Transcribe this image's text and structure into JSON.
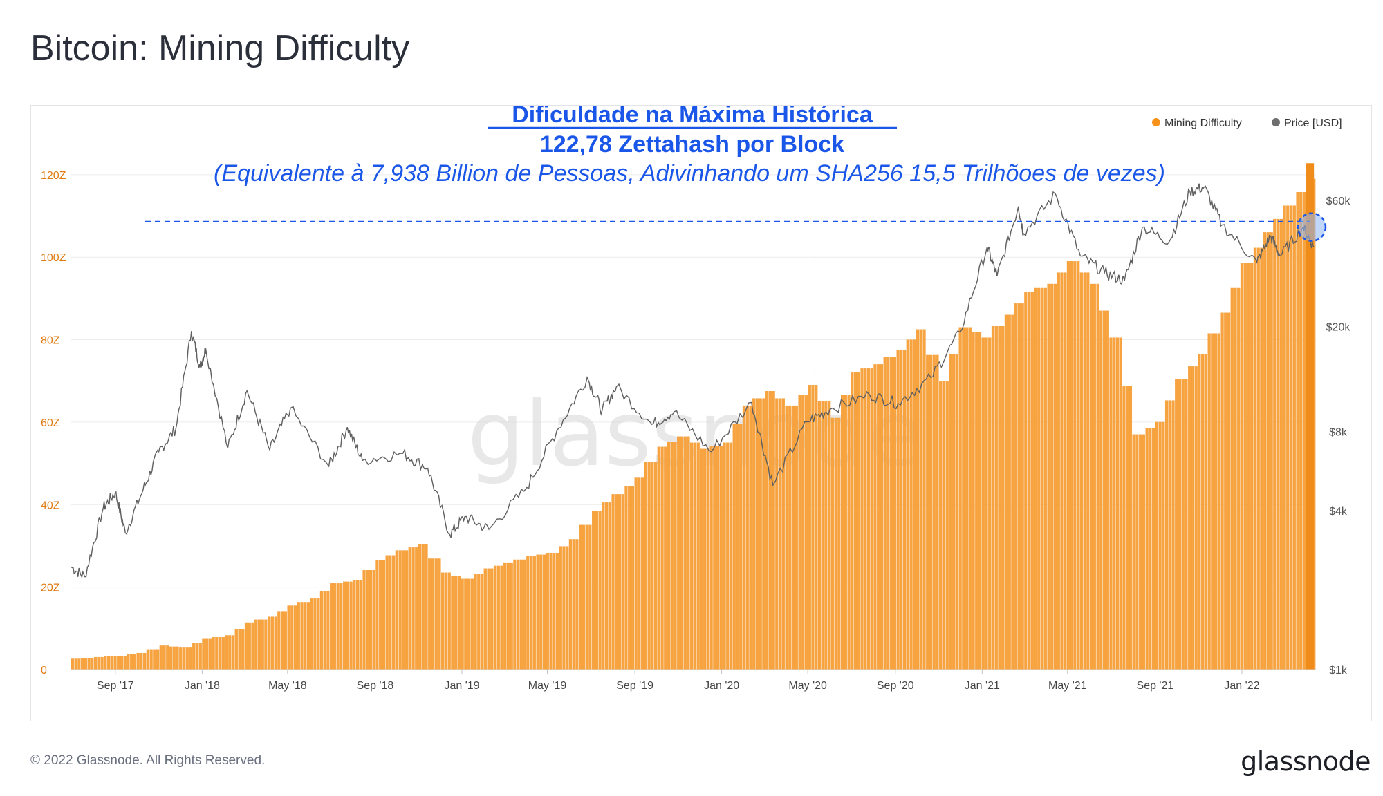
{
  "title": "Bitcoin: Mining Difficulty",
  "footer": {
    "copyright": "© 2022 Glassnode. All Rights Reserved.",
    "logo": "glassnode"
  },
  "watermark": "glassnode",
  "annotation": {
    "line1": "Dificuldade na Máxima Histórica",
    "line2": "122,78 Zettahash por Block",
    "line3": "(Equivalente à 7,938 Billion de Pessoas, Adivinhando um SHA256 15,5 Trilhõoes de vezes)",
    "color": "#1a56e8"
  },
  "chart_data": {
    "type": "bar",
    "legend": [
      {
        "name": "Mining Difficulty",
        "color": "#f7931a"
      },
      {
        "name": "Price [USD]",
        "color": "#6e6e6e"
      }
    ],
    "legend_position": "top-right",
    "y_left": {
      "label": "",
      "range": [
        0,
        125
      ],
      "ticks": [
        "0",
        "20Z",
        "40Z",
        "60Z",
        "80Z",
        "100Z",
        "120Z"
      ],
      "tick_values": [
        0,
        20,
        40,
        60,
        80,
        100,
        120
      ],
      "color": "#e07b12"
    },
    "y_right": {
      "label": "",
      "scale": "log",
      "range": [
        1000,
        90000
      ],
      "ticks": [
        "$1k",
        "$4k",
        "$8k",
        "$20k",
        "$60k"
      ],
      "tick_values": [
        1000,
        4000,
        8000,
        20000,
        60000
      ],
      "color": "#555555"
    },
    "x_axis": {
      "start": "2017-07-01",
      "end": "2022-04-15",
      "ticks": [
        "Sep '17",
        "Jan '18",
        "May '18",
        "Sep '18",
        "Jan '19",
        "May '19",
        "Sep '19",
        "Jan '20",
        "May '20",
        "Sep '20",
        "Jan '21",
        "May '21",
        "Sep '21",
        "Jan '22"
      ],
      "tick_dates": [
        "2017-09-01",
        "2018-01-01",
        "2018-05-01",
        "2018-09-01",
        "2019-01-01",
        "2019-05-01",
        "2019-09-01",
        "2020-01-01",
        "2020-05-01",
        "2020-09-01",
        "2021-01-01",
        "2021-05-01",
        "2021-09-01",
        "2022-01-01"
      ]
    },
    "grid": true,
    "ath_reference": {
      "difficulty": 122.78,
      "price_at_marker": 47000
    },
    "vertical_marker_date": "2020-05-11",
    "difficulty_series": {
      "name": "Mining Difficulty",
      "points": [
        [
          "2017-07-01",
          2.6
        ],
        [
          "2017-08-01",
          3.0
        ],
        [
          "2017-09-01",
          3.3
        ],
        [
          "2017-10-01",
          4.0
        ],
        [
          "2017-11-01",
          5.8
        ],
        [
          "2017-12-01",
          5.3
        ],
        [
          "2018-01-01",
          7.4
        ],
        [
          "2018-02-01",
          8.3
        ],
        [
          "2018-03-01",
          11.4
        ],
        [
          "2018-04-01",
          12.8
        ],
        [
          "2018-05-01",
          15.5
        ],
        [
          "2018-06-01",
          17.2
        ],
        [
          "2018-07-01",
          20.9
        ],
        [
          "2018-08-01",
          21.7
        ],
        [
          "2018-09-01",
          26.5
        ],
        [
          "2018-10-01",
          28.9
        ],
        [
          "2018-11-01",
          30.3
        ],
        [
          "2018-12-01",
          23.5
        ],
        [
          "2019-01-01",
          22.0
        ],
        [
          "2019-02-01",
          24.5
        ],
        [
          "2019-03-01",
          25.8
        ],
        [
          "2019-04-01",
          27.5
        ],
        [
          "2019-05-01",
          28.2
        ],
        [
          "2019-06-01",
          31.6
        ],
        [
          "2019-07-01",
          38.5
        ],
        [
          "2019-08-01",
          42.5
        ],
        [
          "2019-09-01",
          46.5
        ],
        [
          "2019-10-01",
          54.0
        ],
        [
          "2019-11-01",
          56.5
        ],
        [
          "2019-12-01",
          53.5
        ],
        [
          "2020-01-01",
          55.0
        ],
        [
          "2020-02-01",
          64.0
        ],
        [
          "2020-03-01",
          67.5
        ],
        [
          "2020-04-01",
          64.0
        ],
        [
          "2020-05-01",
          69.0
        ],
        [
          "2020-06-01",
          61.0
        ],
        [
          "2020-07-01",
          72.0
        ],
        [
          "2020-08-01",
          74.0
        ],
        [
          "2020-09-01",
          77.5
        ],
        [
          "2020-10-01",
          82.5
        ],
        [
          "2020-11-01",
          70.0
        ],
        [
          "2020-12-01",
          83.0
        ],
        [
          "2021-01-01",
          80.5
        ],
        [
          "2021-02-01",
          86.0
        ],
        [
          "2021-03-01",
          91.5
        ],
        [
          "2021-04-01",
          93.5
        ],
        [
          "2021-05-01",
          99.0
        ],
        [
          "2021-06-01",
          93.5
        ],
        [
          "2021-07-01",
          80.5
        ],
        [
          "2021-08-01",
          57.0
        ],
        [
          "2021-09-01",
          60.0
        ],
        [
          "2021-10-01",
          70.5
        ],
        [
          "2021-11-01",
          76.5
        ],
        [
          "2021-12-01",
          86.5
        ],
        [
          "2022-01-01",
          98.5
        ],
        [
          "2022-02-01",
          106.0
        ],
        [
          "2022-03-01",
          112.5
        ],
        [
          "2022-04-01",
          119.0
        ]
      ]
    },
    "price_series": {
      "name": "Price [USD]",
      "points": [
        [
          "2017-07-01",
          2450
        ],
        [
          "2017-07-20",
          2250
        ],
        [
          "2017-08-15",
          4100
        ],
        [
          "2017-09-01",
          4700
        ],
        [
          "2017-09-15",
          3300
        ],
        [
          "2017-10-10",
          4800
        ],
        [
          "2017-11-01",
          6700
        ],
        [
          "2017-11-25",
          8200
        ],
        [
          "2017-12-17",
          19200
        ],
        [
          "2017-12-29",
          14000
        ],
        [
          "2018-01-06",
          16500
        ],
        [
          "2018-02-06",
          6900
        ],
        [
          "2018-03-05",
          11400
        ],
        [
          "2018-04-06",
          6800
        ],
        [
          "2018-05-05",
          9800
        ],
        [
          "2018-06-28",
          5900
        ],
        [
          "2018-07-24",
          8300
        ],
        [
          "2018-08-14",
          6200
        ],
        [
          "2018-10-10",
          6600
        ],
        [
          "2018-11-14",
          5800
        ],
        [
          "2018-12-15",
          3250
        ],
        [
          "2019-01-05",
          3800
        ],
        [
          "2019-02-08",
          3400
        ],
        [
          "2019-04-02",
          4900
        ],
        [
          "2019-05-14",
          8000
        ],
        [
          "2019-06-26",
          12800
        ],
        [
          "2019-07-17",
          9600
        ],
        [
          "2019-08-06",
          11800
        ],
        [
          "2019-09-25",
          8500
        ],
        [
          "2019-10-26",
          9500
        ],
        [
          "2019-12-17",
          6700
        ],
        [
          "2020-02-12",
          10300
        ],
        [
          "2020-03-13",
          5000
        ],
        [
          "2020-04-30",
          8700
        ],
        [
          "2020-06-01",
          9700
        ],
        [
          "2020-07-27",
          11000
        ],
        [
          "2020-09-05",
          10200
        ],
        [
          "2020-10-21",
          12800
        ],
        [
          "2020-12-01",
          19000
        ],
        [
          "2021-01-08",
          40000
        ],
        [
          "2021-01-22",
          31000
        ],
        [
          "2021-02-21",
          57000
        ],
        [
          "2021-02-28",
          45000
        ],
        [
          "2021-04-14",
          63500
        ],
        [
          "2021-05-19",
          37000
        ],
        [
          "2021-06-22",
          32000
        ],
        [
          "2021-07-20",
          29800
        ],
        [
          "2021-08-14",
          47500
        ],
        [
          "2021-09-21",
          42000
        ],
        [
          "2021-10-20",
          65000
        ],
        [
          "2021-11-09",
          67500
        ],
        [
          "2021-12-04",
          48500
        ],
        [
          "2022-01-22",
          35000
        ],
        [
          "2022-02-10",
          44000
        ],
        [
          "2022-02-24",
          37000
        ],
        [
          "2022-03-28",
          47500
        ],
        [
          "2022-04-12",
          40000
        ]
      ]
    }
  }
}
